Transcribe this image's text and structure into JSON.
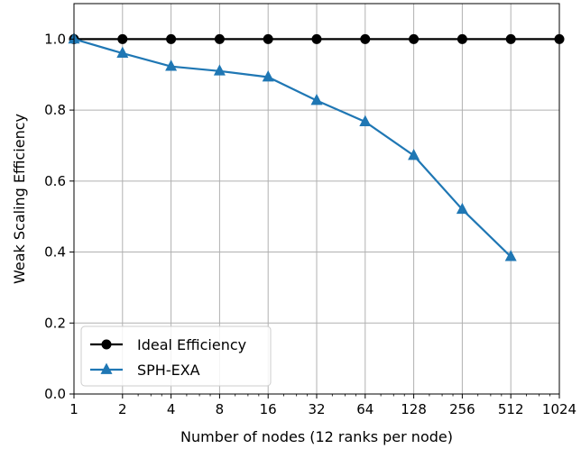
{
  "chart_data": {
    "type": "line",
    "xlabel": "Number of nodes (12 ranks per node)",
    "ylabel": "Weak Scaling Efficiency",
    "x_scale": "log2",
    "xlim": [
      1,
      1024
    ],
    "ylim": [
      0.0,
      1.1
    ],
    "x_ticks": [
      "1",
      "2",
      "4",
      "8",
      "16",
      "32",
      "64",
      "128",
      "256",
      "512",
      "1024"
    ],
    "y_ticks": [
      "0.0",
      "0.2",
      "0.4",
      "0.6",
      "0.8",
      "1.0"
    ],
    "grid": true,
    "legend_position": "lower-left",
    "series": [
      {
        "name": "Ideal Efficiency",
        "color": "#000000",
        "marker": "circle",
        "x": [
          1,
          2,
          4,
          8,
          16,
          32,
          64,
          128,
          256,
          512,
          1024
        ],
        "y": [
          1.0,
          1.0,
          1.0,
          1.0,
          1.0,
          1.0,
          1.0,
          1.0,
          1.0,
          1.0,
          1.0
        ]
      },
      {
        "name": "SPH-EXA",
        "color": "#1f77b4",
        "marker": "triangle",
        "x": [
          1,
          2,
          4,
          8,
          16,
          32,
          64,
          128,
          256,
          512
        ],
        "y": [
          1.0,
          0.96,
          0.923,
          0.91,
          0.893,
          0.827,
          0.767,
          0.672,
          0.52,
          0.387
        ]
      }
    ]
  }
}
